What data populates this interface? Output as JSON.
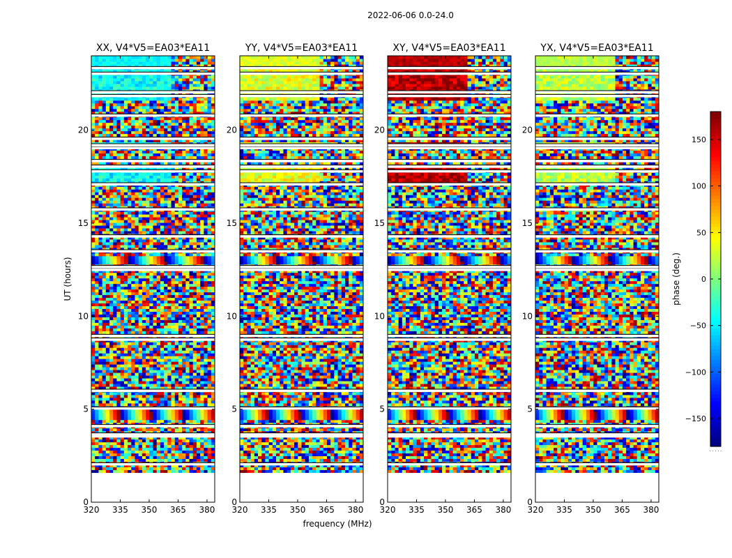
{
  "figure": {
    "suptitle": "2022-06-06 0.0-24.0"
  },
  "chart_data": {
    "type": "heatmap",
    "title": "2022-06-06 0.0-24.0",
    "xlabel": "frequency (MHz)",
    "ylabel": "UT (hours)",
    "xlim": [
      320,
      384
    ],
    "ylim": [
      0,
      24
    ],
    "xticks": [
      320,
      335,
      350,
      365,
      380
    ],
    "yticks": [
      0,
      5,
      10,
      15,
      20
    ],
    "data_start_hour": 1.6,
    "flagged_rows_ut": [
      2.05,
      3.55,
      3.65,
      4.1,
      5.05,
      6.0,
      8.75,
      8.95,
      12.5,
      12.65,
      13.5,
      14.3,
      15.75,
      17.1,
      17.8,
      18.05,
      18.35,
      19.05,
      19.2,
      19.55,
      20.8,
      21.85,
      22.05,
      23.05,
      23.35
    ],
    "panels": [
      {
        "title": "XX, V4*V5=EA03*EA11",
        "baseline_phase": -45
      },
      {
        "title": "YY, V4*V5=EA03*EA11",
        "baseline_phase": 35
      },
      {
        "title": "XY, V4*V5=EA03*EA11",
        "baseline_phase": 160
      },
      {
        "title": "YX, V4*V5=EA03*EA11",
        "baseline_phase": 20
      }
    ],
    "colorbar": {
      "label": "phase (deg.)",
      "range": [
        -180,
        180
      ],
      "ticks": [
        -150,
        -100,
        -50,
        0,
        50,
        100,
        150
      ],
      "colormap": "jet",
      "underflow_text": ". . . . ."
    }
  }
}
